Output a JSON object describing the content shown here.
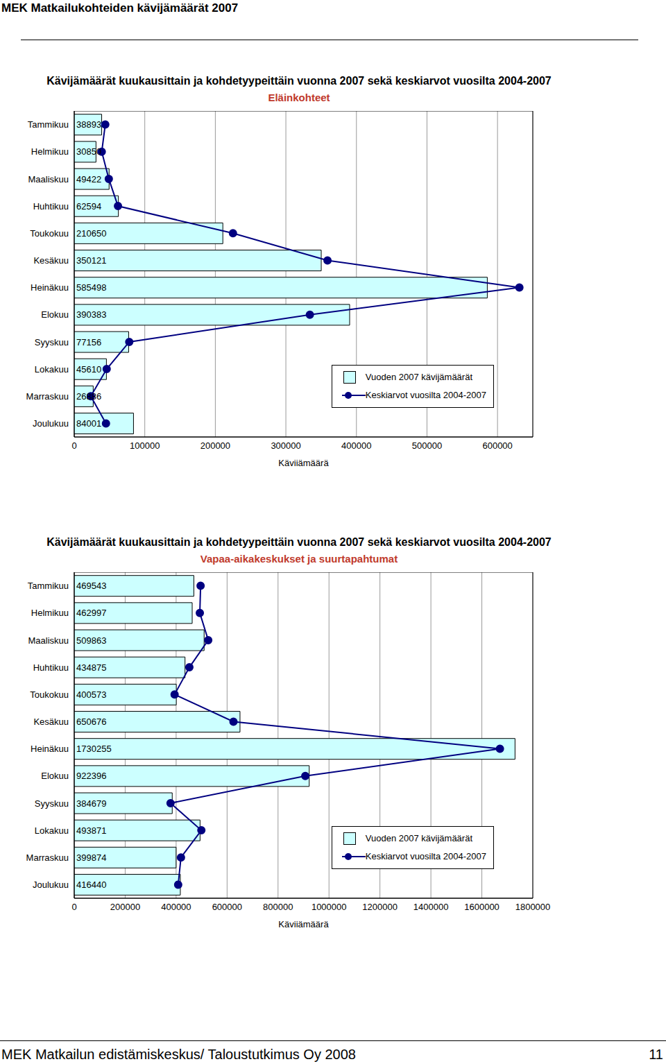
{
  "page": {
    "header": "MEK Matkailukohteiden kävijämäärät 2007",
    "footer": "MEK Matkailun edistämiskeskus/ Taloustutkimus Oy 2008",
    "page_number": 11
  },
  "chart_data": [
    {
      "type": "bar",
      "orientation": "horizontal",
      "title": "Kävijämäärät kuukausittain ja kohdetyypeittäin vuonna 2007 sekä keskiarvot vuosilta 2004-2007",
      "subtitle": "Eläinkohteet",
      "xlabel": "Kävijämäärä",
      "categories": [
        "Tammikuu",
        "Helmikuu",
        "Maaliskuu",
        "Huhtikuu",
        "Toukokuu",
        "Kesäkuu",
        "Heinäkuu",
        "Elokuu",
        "Syyskuu",
        "Lokakuu",
        "Marraskuu",
        "Joulukuu"
      ],
      "series": [
        {
          "name": "Vuoden 2007 kävijämäärät",
          "type": "bar",
          "color": "#ccffff",
          "values": [
            38893,
            30850,
            49422,
            62594,
            210650,
            350121,
            585498,
            390383,
            77156,
            45610,
            26886,
            84001
          ]
        },
        {
          "name": "Keskiarvot vuosilta 2004-2007",
          "type": "line",
          "marker": "circle",
          "color": "#000080",
          "values": [
            44000,
            39000,
            49000,
            62000,
            225000,
            359000,
            631000,
            334000,
            78000,
            46000,
            23500,
            45000
          ]
        }
      ],
      "xlim": [
        0,
        650000
      ],
      "xticks": [
        0,
        100000,
        200000,
        300000,
        400000,
        500000,
        600000
      ],
      "grid": true,
      "legend": "lower right",
      "data_labels": true
    },
    {
      "type": "bar",
      "orientation": "horizontal",
      "title": "Kävijämäärät kuukausittain ja kohdetyypeittäin vuonna 2007 sekä keskiarvot vuosilta 2004-2007",
      "subtitle": "Vapaa-aikakeskukset ja suurtapahtumat",
      "xlabel": "Kävijämäärä",
      "categories": [
        "Tammikuu",
        "Helmikuu",
        "Maaliskuu",
        "Huhtikuu",
        "Toukokuu",
        "Kesäkuu",
        "Heinäkuu",
        "Elokuu",
        "Syyskuu",
        "Lokakuu",
        "Marraskuu",
        "Joulukuu"
      ],
      "series": [
        {
          "name": "Vuoden 2007 kävijämäärät",
          "type": "bar",
          "color": "#ccffff",
          "values": [
            469543,
            462997,
            509863,
            434875,
            400573,
            650676,
            1730255,
            922396,
            384679,
            493871,
            399874,
            416440
          ]
        },
        {
          "name": "Keskiarvot vuosilta 2004-2007",
          "type": "line",
          "marker": "circle",
          "color": "#000080",
          "values": [
            496000,
            493000,
            526000,
            452000,
            394000,
            625000,
            1671000,
            907000,
            378000,
            499000,
            419000,
            408000
          ]
        }
      ],
      "xlim": [
        0,
        1800000
      ],
      "xticks": [
        0,
        200000,
        400000,
        600000,
        800000,
        1000000,
        1200000,
        1400000,
        1600000,
        1800000
      ],
      "grid": true,
      "legend": "lower right",
      "data_labels": true
    }
  ]
}
